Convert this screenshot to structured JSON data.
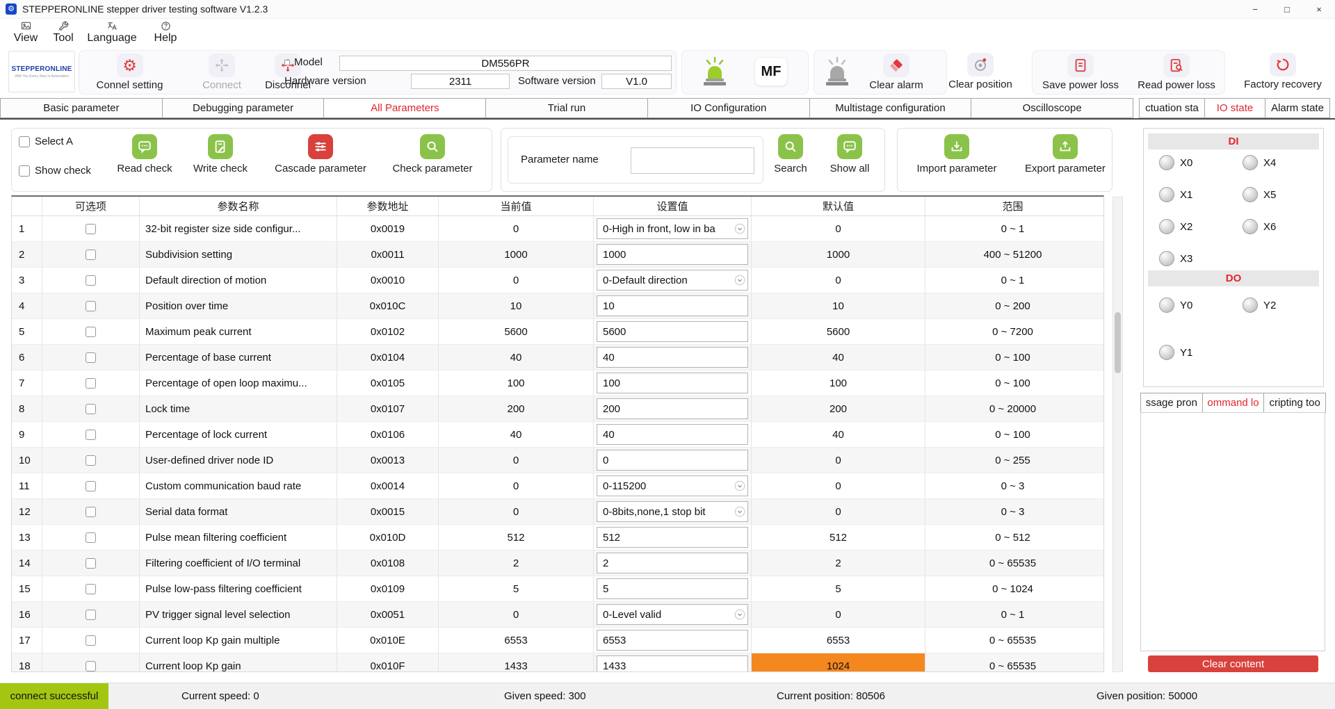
{
  "window": {
    "title": "STEPPERONLINE stepper driver testing software V1.2.3",
    "minimize": "−",
    "maximize": "□",
    "close": "×"
  },
  "menu": {
    "items": [
      {
        "label": "View"
      },
      {
        "label": "Tool"
      },
      {
        "label": "Language"
      },
      {
        "label": "Help"
      }
    ]
  },
  "toolbar": {
    "logo_line1": "STEPPERONLINE",
    "logo_line2": "With You Every Step In Automation",
    "connect_setting": "Connel setting",
    "connect": "Connect",
    "disconnect": "Disconnel",
    "model_label": "Model",
    "model_value": "DM556PR",
    "hardware_label": "Hardware version",
    "hardware_value": "2311",
    "software_label": "Software version",
    "software_value": "V1.0",
    "mf_badge": "MF",
    "clear_alarm": "Clear alarm",
    "clear_position": "Clear position",
    "save_power_loss": "Save power loss",
    "read_power_loss": "Read power loss",
    "factory_recovery": "Factory recovery"
  },
  "main_tabs": {
    "items": [
      "Basic parameter",
      "Debugging parameter",
      "All Parameters",
      "Trial run",
      "IO Configuration",
      "Multistage configuration",
      "Oscilloscope"
    ],
    "selected": "All Parameters"
  },
  "state_tabs": {
    "items": [
      "ctuation sta",
      "IO state",
      "Alarm state"
    ],
    "selected": "IO state"
  },
  "param_toolbar": {
    "select_all": "Select A",
    "show_check": "Show check",
    "read_check": "Read check",
    "write_check": "Write check",
    "cascade_parameter": "Cascade parameter",
    "check_parameter": "Check parameter",
    "param_name_label": "Parameter name",
    "param_name_value": "",
    "search": "Search",
    "show_all": "Show all",
    "import_parameter": "Import parameter",
    "export_parameter": "Export parameter"
  },
  "table": {
    "headers": [
      "可选项",
      "参数名称",
      "参数地址",
      "当前值",
      "设置值",
      "默认值",
      "范围"
    ],
    "rows": [
      {
        "num": 1,
        "name": "32-bit register size side configur...",
        "addr": "0x0019",
        "current": "0",
        "set": "0-High in front, low in ba",
        "set_type": "dropdown",
        "default": "0",
        "range": "0 ~ 1"
      },
      {
        "num": 2,
        "name": "Subdivision setting",
        "addr": "0x0011",
        "current": "1000",
        "set": "1000",
        "set_type": "input",
        "default": "1000",
        "range": "400 ~ 51200"
      },
      {
        "num": 3,
        "name": "Default direction of motion",
        "addr": "0x0010",
        "current": "0",
        "set": "0-Default direction",
        "set_type": "dropdown",
        "default": "0",
        "range": "0 ~ 1"
      },
      {
        "num": 4,
        "name": "Position over time",
        "addr": "0x010C",
        "current": "10",
        "set": "10",
        "set_type": "input",
        "default": "10",
        "range": "0 ~ 200"
      },
      {
        "num": 5,
        "name": "Maximum peak current",
        "addr": "0x0102",
        "current": "5600",
        "set": "5600",
        "set_type": "input",
        "default": "5600",
        "range": "0 ~ 7200"
      },
      {
        "num": 6,
        "name": "Percentage of base current",
        "addr": "0x0104",
        "current": "40",
        "set": "40",
        "set_type": "input",
        "default": "40",
        "range": "0 ~ 100"
      },
      {
        "num": 7,
        "name": "Percentage of open loop maximu...",
        "addr": "0x0105",
        "current": "100",
        "set": "100",
        "set_type": "input",
        "default": "100",
        "range": "0 ~ 100"
      },
      {
        "num": 8,
        "name": "Lock time",
        "addr": "0x0107",
        "current": "200",
        "set": "200",
        "set_type": "input",
        "default": "200",
        "range": "0 ~ 20000"
      },
      {
        "num": 9,
        "name": "Percentage of lock current",
        "addr": "0x0106",
        "current": "40",
        "set": "40",
        "set_type": "input",
        "default": "40",
        "range": "0 ~ 100"
      },
      {
        "num": 10,
        "name": "User-defined driver node ID",
        "addr": "0x0013",
        "current": "0",
        "set": "0",
        "set_type": "input",
        "default": "0",
        "range": "0 ~ 255"
      },
      {
        "num": 11,
        "name": "Custom communication baud rate",
        "addr": "0x0014",
        "current": "0",
        "set": "0-115200",
        "set_type": "dropdown",
        "default": "0",
        "range": "0 ~ 3"
      },
      {
        "num": 12,
        "name": "Serial data format",
        "addr": "0x0015",
        "current": "0",
        "set": "0-8bits,none,1 stop bit",
        "set_type": "dropdown",
        "default": "0",
        "range": "0 ~ 3"
      },
      {
        "num": 13,
        "name": "Pulse mean filtering coefficient",
        "addr": "0x010D",
        "current": "512",
        "set": "512",
        "set_type": "input",
        "default": "512",
        "range": "0 ~ 512"
      },
      {
        "num": 14,
        "name": "Filtering coefficient of I/O terminal",
        "addr": "0x0108",
        "current": "2",
        "set": "2",
        "set_type": "input",
        "default": "2",
        "range": "0 ~ 65535"
      },
      {
        "num": 15,
        "name": "Pulse low-pass filtering coefficient",
        "addr": "0x0109",
        "current": "5",
        "set": "5",
        "set_type": "input",
        "default": "5",
        "range": "0 ~ 1024"
      },
      {
        "num": 16,
        "name": "PV trigger signal level selection",
        "addr": "0x0051",
        "current": "0",
        "set": "0-Level valid",
        "set_type": "dropdown",
        "default": "0",
        "range": "0 ~ 1"
      },
      {
        "num": 17,
        "name": "Current loop Kp gain multiple",
        "addr": "0x010E",
        "current": "6553",
        "set": "6553",
        "set_type": "input",
        "default": "6553",
        "range": "0 ~ 65535"
      },
      {
        "num": 18,
        "name": "Current loop Kp gain",
        "addr": "0x010F",
        "current": "1433",
        "set": "1433",
        "set_type": "input",
        "default": "1024",
        "default_highlight": true,
        "range": "0 ~ 65535"
      }
    ]
  },
  "io_panel": {
    "di_label": "DI",
    "do_label": "DO",
    "di": [
      "X0",
      "X1",
      "X2",
      "X3",
      "X4",
      "X5",
      "X6"
    ],
    "do": [
      "Y0",
      "Y1",
      "Y2"
    ]
  },
  "log_panel": {
    "tabs": [
      "ssage pron",
      "ommand lo",
      "cripting too"
    ],
    "selected": "ommand lo",
    "clear_button": "Clear content"
  },
  "status_bar": {
    "connect": "connect successful",
    "current_speed": "Current speed: 0",
    "given_speed": "Given speed: 300",
    "current_position": "Current position: 80506",
    "given_position": "Given position: 50000"
  },
  "colors": {
    "accent_red": "#e0393e",
    "green_icon": "#8bc34a",
    "red_icon": "#d9413d",
    "orange_highlight": "#f5871f",
    "connect_green": "#a3c711"
  }
}
